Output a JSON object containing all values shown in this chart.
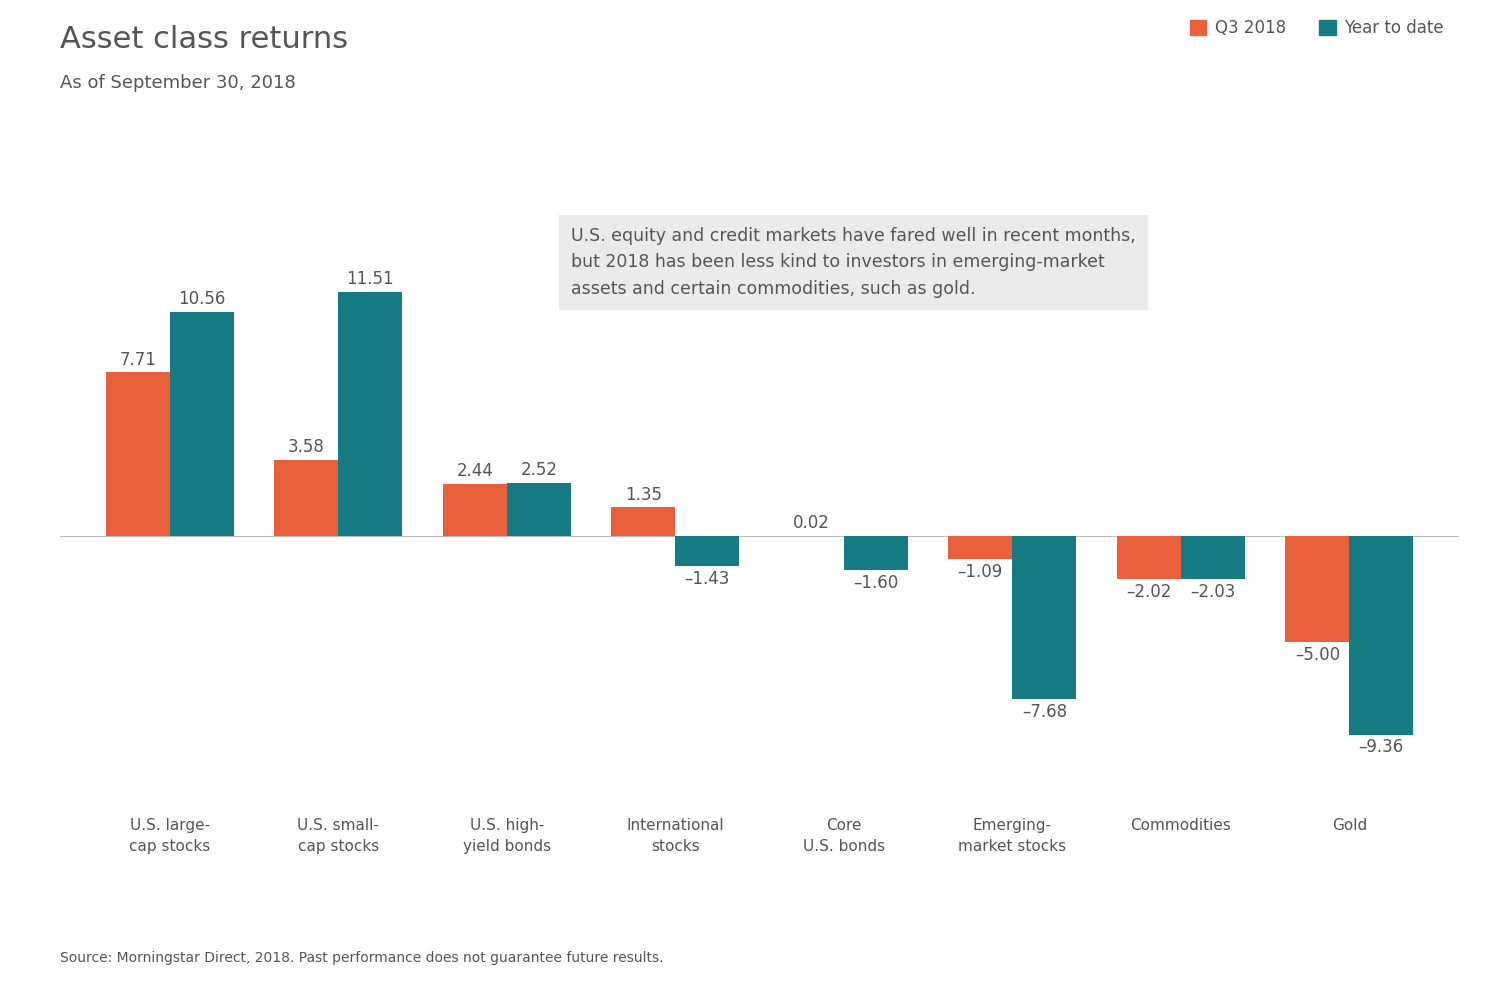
{
  "title": "Asset class returns",
  "subtitle": "As of September 30, 2018",
  "source": "Source: Morningstar Direct, 2018. Past performance does not guarantee future results.",
  "categories": [
    "U.S. large-\ncap stocks",
    "U.S. small-\ncap stocks",
    "U.S. high-\nyield bonds",
    "International\nstocks",
    "Core\nU.S. bonds",
    "Emerging-\nmarket stocks",
    "Commodities",
    "Gold"
  ],
  "q3_values": [
    7.71,
    3.58,
    2.44,
    1.35,
    0.02,
    -1.09,
    -2.02,
    -5.0
  ],
  "ytd_values": [
    10.56,
    11.51,
    2.52,
    -1.43,
    -1.6,
    -7.68,
    -2.03,
    -9.36
  ],
  "q3_color": "#E8603C",
  "ytd_color": "#167B82",
  "background_color": "#FFFFFF",
  "annotation_box_color": "#EBEBEB",
  "annotation_text": "U.S. equity and credit markets have fared well in recent months,\nbut 2018 has been less kind to investors in emerging-market\nassets and certain commodities, such as gold.",
  "legend_q3": "Q3 2018",
  "legend_ytd": "Year to date",
  "ylim": [
    -13,
    15
  ],
  "title_fontsize": 22,
  "subtitle_fontsize": 13,
  "value_fontsize": 12,
  "axis_label_fontsize": 11,
  "source_fontsize": 10,
  "legend_fontsize": 12,
  "text_color": "#555555",
  "bar_width": 0.38
}
